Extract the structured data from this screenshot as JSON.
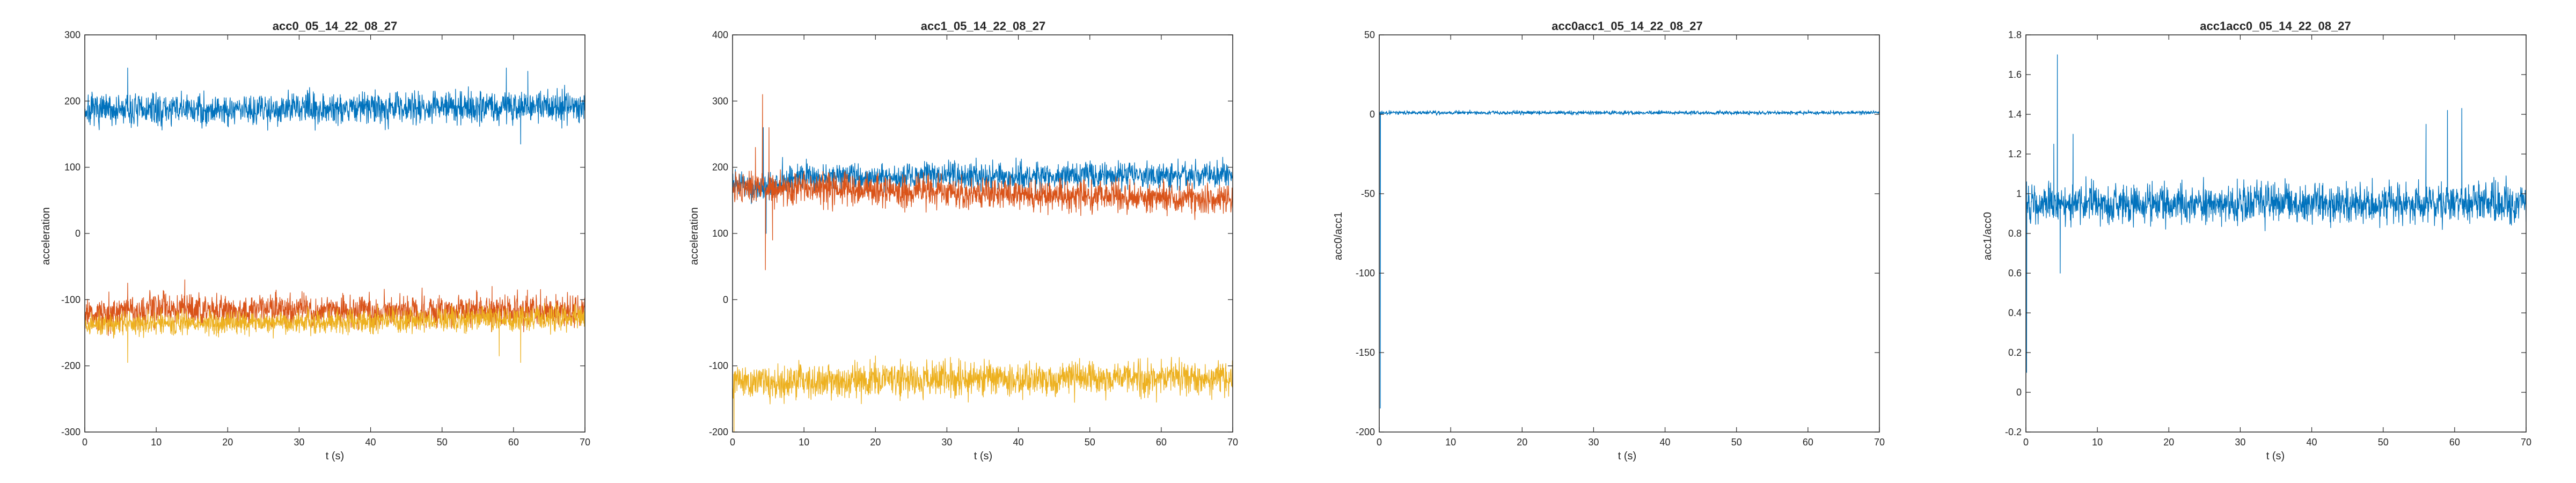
{
  "chart_data": [
    {
      "type": "line",
      "title": "acc0_05_14_22_08_27",
      "xlabel": "t (s)",
      "ylabel": "acceleration",
      "xlim": [
        0,
        70
      ],
      "ylim": [
        -300,
        300
      ],
      "xticks": [
        0,
        10,
        20,
        30,
        40,
        50,
        60,
        70
      ],
      "yticks": [
        -300,
        -200,
        -100,
        0,
        100,
        200,
        300
      ],
      "grid": false,
      "series": [
        {
          "color": "#0072BD",
          "trend": [
            [
              0,
              185
            ],
            [
              35,
              190
            ],
            [
              70,
              193
            ]
          ],
          "noise": 12,
          "spikes": [
            [
              6,
              250
            ],
            [
              6.5,
              160
            ],
            [
              59,
              250
            ],
            [
              61,
              135
            ],
            [
              62,
              245
            ]
          ]
        },
        {
          "color": "#D95319",
          "trend": [
            [
              0,
              -125
            ],
            [
              10,
              -112
            ],
            [
              20,
              -115
            ],
            [
              70,
              -118
            ]
          ],
          "noise": 12,
          "spikes": [
            [
              6,
              -75
            ],
            [
              14,
              -70
            ],
            [
              57,
              -80
            ]
          ]
        },
        {
          "color": "#EDB120",
          "trend": [
            [
              0,
              -138
            ],
            [
              35,
              -133
            ],
            [
              70,
              -128
            ]
          ],
          "noise": 9,
          "spikes": [
            [
              6,
              -195
            ],
            [
              58,
              -185
            ],
            [
              61,
              -195
            ]
          ]
        }
      ]
    },
    {
      "type": "line",
      "title": "acc1_05_14_22_08_27",
      "xlabel": "t (s)",
      "ylabel": "acceleration",
      "xlim": [
        0,
        70
      ],
      "ylim": [
        -200,
        400
      ],
      "xticks": [
        0,
        10,
        20,
        30,
        40,
        50,
        60,
        70
      ],
      "yticks": [
        -200,
        -100,
        0,
        100,
        200,
        300,
        400
      ],
      "grid": false,
      "series": [
        {
          "color": "#0072BD",
          "trend": [
            [
              0,
              175
            ],
            [
              5,
              170
            ],
            [
              8,
              185
            ],
            [
              70,
              188
            ]
          ],
          "noise": 10,
          "spikes": [
            [
              4.3,
              260
            ],
            [
              4.7,
              100
            ],
            [
              7,
              215
            ]
          ]
        },
        {
          "color": "#D95319",
          "trend": [
            [
              0,
              170
            ],
            [
              10,
              168
            ],
            [
              35,
              160
            ],
            [
              70,
              150
            ]
          ],
          "noise": 12,
          "spikes": [
            [
              3.2,
              230
            ],
            [
              4.2,
              310
            ],
            [
              4.6,
              45
            ],
            [
              5.1,
              260
            ],
            [
              5.6,
              90
            ]
          ]
        },
        {
          "color": "#EDB120",
          "trend": [
            [
              0,
              -125
            ],
            [
              35,
              -120
            ],
            [
              70,
              -118
            ]
          ],
          "noise": 13,
          "spikes": [
            [
              0.2,
              -200
            ],
            [
              20,
              -85
            ],
            [
              60,
              -90
            ]
          ]
        }
      ]
    },
    {
      "type": "line",
      "title": "acc0acc1_05_14_22_08_27",
      "xlabel": "t (s)",
      "ylabel": "acc0/acc1",
      "xlim": [
        0,
        70
      ],
      "ylim": [
        -200,
        50
      ],
      "xticks": [
        0,
        10,
        20,
        30,
        40,
        50,
        60,
        70
      ],
      "yticks": [
        -200,
        -150,
        -100,
        -50,
        0,
        50
      ],
      "grid": false,
      "series": [
        {
          "color": "#0072BD",
          "trend": [
            [
              0,
              1
            ],
            [
              70,
              1
            ]
          ],
          "noise": 0.6,
          "spikes": [
            [
              0.15,
              -185
            ]
          ]
        }
      ]
    },
    {
      "type": "line",
      "title": "acc1acc0_05_14_22_08_27",
      "xlabel": "t (s)",
      "ylabel": "acc1/acc0",
      "xlim": [
        0,
        70
      ],
      "ylim": [
        -0.2,
        1.8
      ],
      "xticks": [
        0,
        10,
        20,
        30,
        40,
        50,
        60,
        70
      ],
      "yticks": [
        -0.2,
        0,
        0.2,
        0.4,
        0.6,
        0.8,
        1,
        1.2,
        1.4,
        1.6,
        1.8
      ],
      "grid": false,
      "series": [
        {
          "color": "#0072BD",
          "trend": [
            [
              0,
              0.95
            ],
            [
              70,
              0.95
            ]
          ],
          "noise": 0.05,
          "spikes": [
            [
              0.1,
              0.1
            ],
            [
              3.9,
              1.25
            ],
            [
              4.4,
              1.7
            ],
            [
              4.8,
              0.6
            ],
            [
              6.6,
              1.3
            ],
            [
              56,
              1.35
            ],
            [
              59,
              1.42
            ],
            [
              61,
              1.43
            ]
          ]
        }
      ]
    }
  ]
}
